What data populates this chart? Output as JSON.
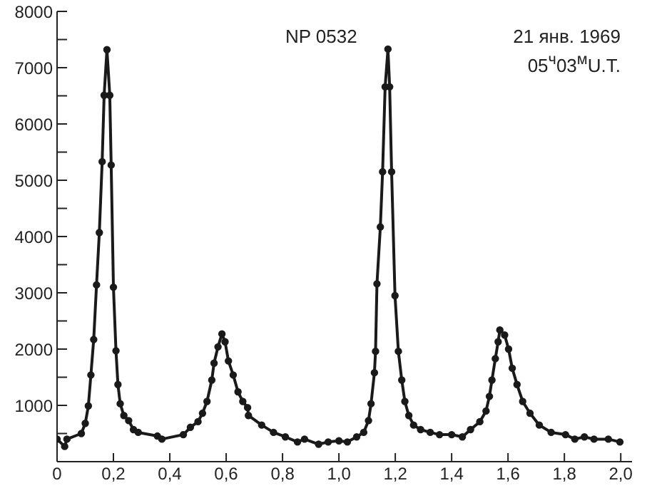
{
  "chart_data": {
    "type": "line",
    "annotations": [
      "NP 0532",
      "21 янв. 1969",
      "05$^{ч}$03$^{м}$U.T."
    ],
    "x": [
      0,
      0.027,
      0.035,
      0.086,
      0.1,
      0.111,
      0.12,
      0.13,
      0.14,
      0.15,
      0.16,
      0.167,
      0.177,
      0.187,
      0.192,
      0.2,
      0.209,
      0.216,
      0.224,
      0.237,
      0.254,
      0.271,
      0.288,
      0.356,
      0.372,
      0.448,
      0.473,
      0.5,
      0.516,
      0.532,
      0.549,
      0.557,
      0.571,
      0.585,
      0.596,
      0.608,
      0.625,
      0.642,
      0.659,
      0.676,
      0.679,
      0.726,
      0.768,
      0.81,
      0.853,
      0.878,
      0.928,
      0.962,
      1.0,
      1.03,
      1.063,
      1.088,
      1.105,
      1.114,
      1.126,
      1.13,
      1.135,
      1.147,
      1.155,
      1.164,
      1.174,
      1.18,
      1.187,
      1.199,
      1.211,
      1.223,
      1.234,
      1.248,
      1.265,
      1.29,
      1.324,
      1.357,
      1.4,
      1.438,
      1.467,
      1.5,
      1.522,
      1.534,
      1.543,
      1.555,
      1.565,
      1.571,
      1.588,
      1.602,
      1.615,
      1.632,
      1.652,
      1.678,
      1.711,
      1.753,
      1.804,
      1.837,
      1.871,
      1.905,
      1.956,
      1.997
    ],
    "series": [
      {
        "color": "#1a1a1a",
        "values": [
          400,
          270,
          400,
          500,
          680,
          990,
          1540,
          2170,
          3140,
          4070,
          5330,
          6510,
          7320,
          6510,
          5270,
          3100,
          1970,
          1370,
          1030,
          820,
          730,
          570,
          520,
          455,
          400,
          480,
          610,
          710,
          860,
          1070,
          1450,
          1750,
          2040,
          2270,
          2130,
          1790,
          1540,
          1240,
          1070,
          960,
          820,
          650,
          520,
          440,
          350,
          400,
          310,
          350,
          370,
          350,
          440,
          520,
          730,
          1030,
          1580,
          1960,
          3160,
          4170,
          5150,
          6660,
          7330,
          6660,
          5150,
          2950,
          1960,
          1450,
          1070,
          820,
          650,
          570,
          520,
          480,
          480,
          440,
          570,
          710,
          900,
          1160,
          1450,
          1830,
          2130,
          2340,
          2250,
          2000,
          1660,
          1370,
          1070,
          860,
          650,
          520,
          480,
          400,
          440,
          400,
          400,
          350
        ]
      }
    ],
    "xlim": [
      0,
      2.04
    ],
    "ylim": [
      0,
      8000
    ],
    "xticks": [
      0,
      {
        "value": 0.2,
        "label": "0,2"
      },
      {
        "value": 0.4,
        "label": "0,4"
      },
      {
        "value": 0.6,
        "label": "0,6"
      },
      {
        "value": 0.8,
        "label": "0,8"
      },
      {
        "value": 1.0,
        "label": "1,0"
      },
      {
        "value": 1.2,
        "label": "1,2"
      },
      {
        "value": 1.4,
        "label": "1,4"
      },
      {
        "value": 1.6,
        "label": "1,6"
      },
      {
        "value": 1.8,
        "label": "1,8"
      },
      {
        "value": 2.0,
        "label": "2,0"
      }
    ],
    "yticks": [
      {
        "value": 500,
        "label": null
      },
      1000,
      {
        "value": 1500,
        "label": null
      },
      2000,
      {
        "value": 2500,
        "label": null
      },
      3000,
      {
        "value": 3500,
        "label": null
      },
      4000,
      {
        "value": 4500,
        "label": null
      },
      5000,
      {
        "value": 5500,
        "label": null
      },
      6000,
      {
        "value": 6500,
        "label": null
      },
      7000,
      {
        "value": 7500,
        "label": null
      },
      8000
    ],
    "grid": false,
    "legend": false,
    "marker": "circle",
    "line_style": "solid"
  }
}
